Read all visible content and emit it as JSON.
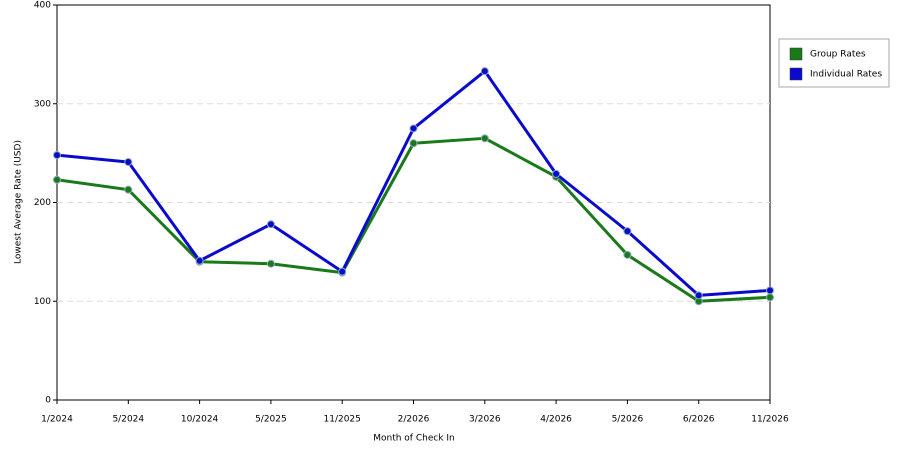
{
  "chart_data": {
    "type": "line",
    "x_label": "Month of Check In",
    "y_label": "Lowest Average Rate (USD)",
    "categories": [
      "1/2024",
      "5/2024",
      "10/2024",
      "5/2025",
      "11/2025",
      "2/2026",
      "3/2026",
      "4/2026",
      "5/2026",
      "6/2026",
      "11/2026"
    ],
    "series": [
      {
        "name": "Group Rates",
        "color": "#1a7a1a",
        "values": [
          223,
          213,
          140,
          138,
          129,
          260,
          265,
          226,
          147,
          100,
          104
        ]
      },
      {
        "name": "Individual Rates",
        "color": "#0a0acc",
        "values": [
          248,
          241,
          141,
          178,
          130,
          275,
          333,
          229,
          171,
          106,
          111
        ]
      }
    ],
    "ylim": [
      0,
      400
    ],
    "yticks": [
      0,
      100,
      200,
      300,
      400
    ],
    "grid": true,
    "legend": "right"
  }
}
